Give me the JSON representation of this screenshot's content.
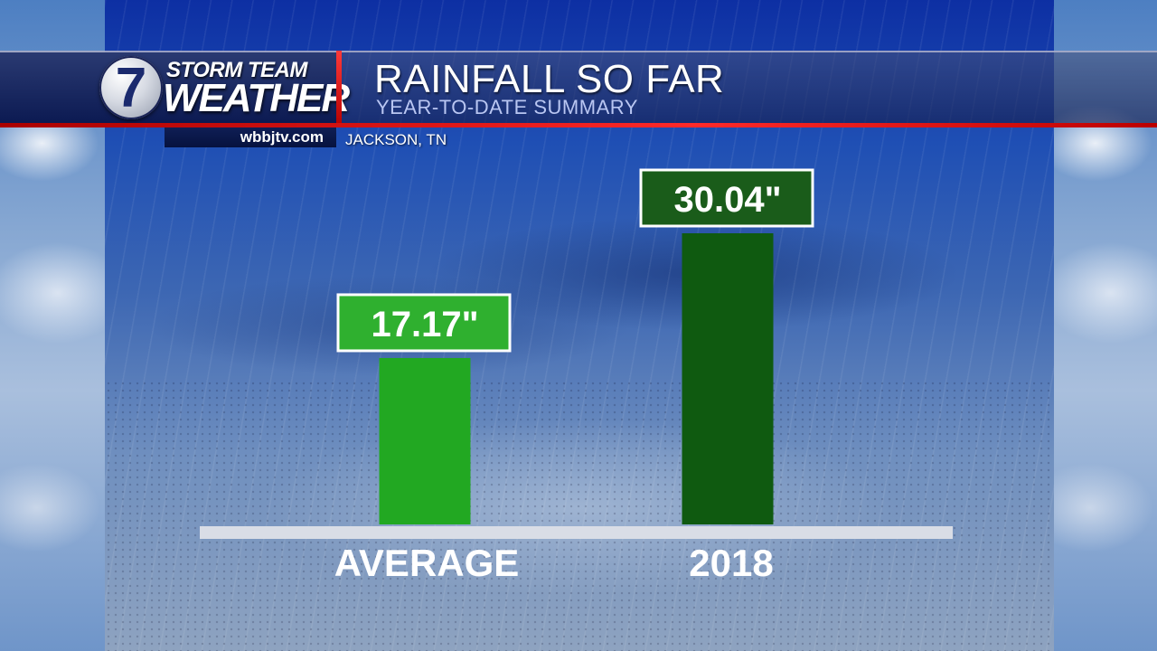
{
  "header": {
    "logo_line1": "STORM TEAM",
    "logo_line2": "WEATHER",
    "logo_number": "7",
    "title": "RAINFALL SO FAR",
    "subtitle": "YEAR-TO-DATE SUMMARY",
    "website": "wbbjtv.com",
    "location": "JACKSON, TN"
  },
  "colors": {
    "accent_red": "#e01818",
    "header_navy": "#0c1a52",
    "average_bar": "#22a822",
    "year_bar": "#0f5a10",
    "average_label_bg": "#2fb02f",
    "year_label_bg": "#1a5c1a"
  },
  "chart_data": {
    "type": "bar",
    "categories": [
      "AVERAGE",
      "2018"
    ],
    "values": [
      17.17,
      30.04
    ],
    "value_labels": [
      "17.17\"",
      "30.04\""
    ],
    "ylim": [
      0,
      30.04
    ],
    "grid": false,
    "legend": "none"
  }
}
